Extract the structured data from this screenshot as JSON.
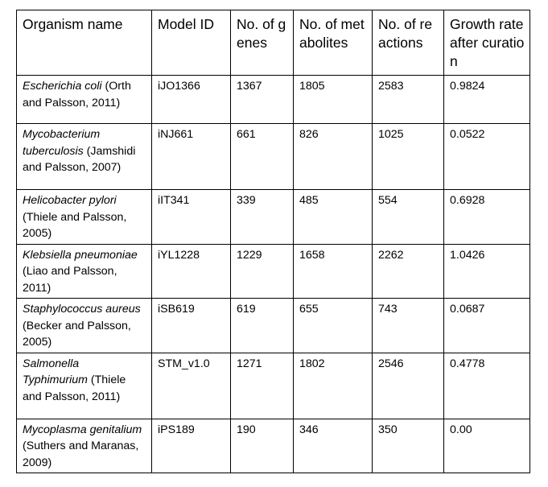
{
  "table": {
    "headers": {
      "organism": "Organism name",
      "model": "Model ID",
      "genes": "No. of genes",
      "metabolites": "No. of metabolites",
      "reactions": "No. of reactions",
      "growth": "Growth rate after curation"
    },
    "rows": [
      {
        "organism_italic": "Escherichia coli",
        "organism_ref": " (Orth and  Palsson, 2011)",
        "model": "iJO1366",
        "genes": "1367",
        "metabolites": "1805",
        "reactions": "2583",
        "growth": "0.9824"
      },
      {
        "organism_italic": "Mycobacterium tuberculosis",
        "organism_ref": " (Jamshidi and Palsson, 2007)",
        "model": "iNJ661",
        "genes": "661",
        "metabolites": "826",
        "reactions": "1025",
        "growth": "0.0522"
      },
      {
        "organism_italic": "Helicobacter pylori",
        "organism_ref": " (Thiele and Palsson, 2005)",
        "model": "iIT341",
        "genes": "339",
        "metabolites": "485",
        "reactions": "554",
        "growth": "0.6928"
      },
      {
        "organism_italic": "Klebsiella pneumoniae",
        "organism_ref": " (Liao and Palsson, 2011)",
        "model": "iYL1228",
        "genes": "1229",
        "metabolites": "1658",
        "reactions": "2262",
        "growth": "1.0426"
      },
      {
        "organism_italic": "Staphylococcus aureus",
        "organism_ref": " (Becker and Palsson, 2005)",
        "model": "iSB619",
        "genes": "619",
        "metabolites": "655",
        "reactions": "743",
        "growth": "0.0687"
      },
      {
        "organism_italic": "Salmonella Typhimurium",
        "organism_ref": " (Thiele and Palsson, 2011)",
        "model": "STM_v1.0",
        "genes": "1271",
        "metabolites": "1802",
        "reactions": "2546",
        "growth": "0.4778"
      },
      {
        "organism_italic": "Mycoplasma genitalium",
        "organism_ref": " (Suthers and Maranas, 2009)",
        "model": "iPS189",
        "genes": "190",
        "metabolites": "346",
        "reactions": "350",
        "growth": "0.00"
      }
    ]
  }
}
